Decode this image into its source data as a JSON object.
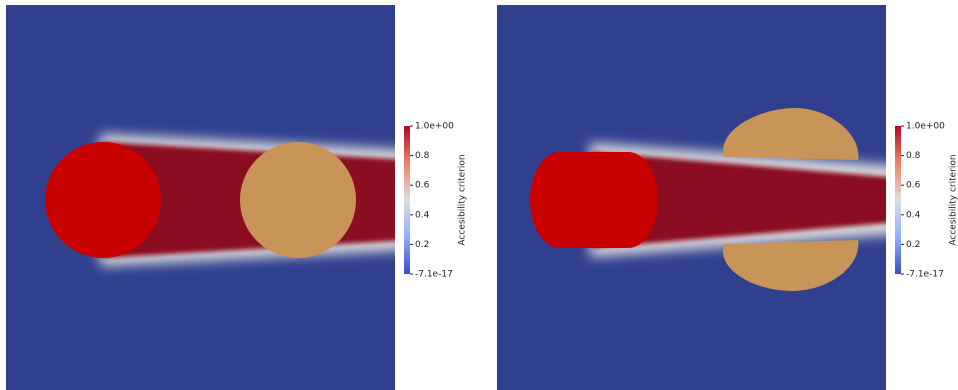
{
  "panels": [
    {
      "colorbar": {
        "title": "Accesibility criterion",
        "ticks": [
          "1.0e+00",
          "0.8",
          "0.6",
          "0.4",
          "0.2",
          "-7.1e-17"
        ]
      }
    },
    {
      "colorbar": {
        "title": "Accesibility criterion",
        "ticks": [
          "1.0e+00",
          "0.8",
          "0.6",
          "0.4",
          "0.2",
          "-7.1e-17"
        ]
      }
    }
  ]
}
